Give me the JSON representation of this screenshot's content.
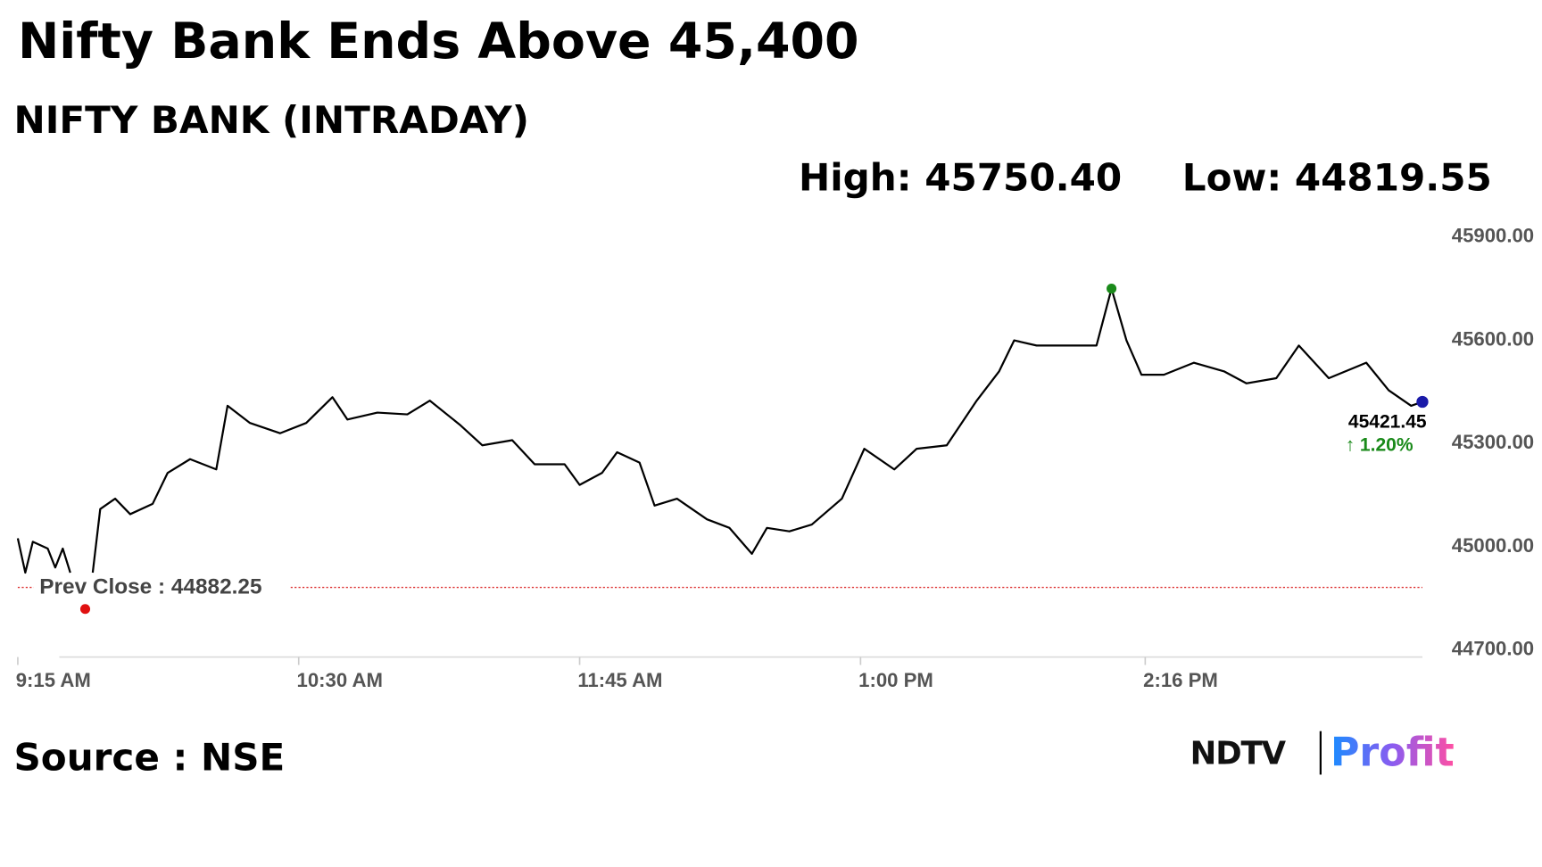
{
  "chart_data": {
    "type": "line",
    "title": "Nifty Bank Ends Above 45,400",
    "subtitle": "NIFTY BANK (INTRADAY)",
    "high": {
      "label": "High:",
      "value": 45750.4,
      "value_label": "45750.40"
    },
    "low": {
      "label": "Low:",
      "value": 44819.55,
      "value_label": "44819.55",
      "x": "9:33 AM"
    },
    "prev_close": {
      "label": "Prev Close :",
      "value": 44882.25
    },
    "last": {
      "value": 45421.45,
      "change": {
        "value": 1.2,
        "label": "1.20%"
      }
    },
    "source": "Source : NSE",
    "logo": [
      "NDTV",
      "Profit"
    ],
    "xlim": [
      "9:15 AM",
      "3:30 PM"
    ],
    "xticks": [
      "9:15 AM",
      "10:30 AM",
      "11:45 AM",
      "1:00 PM",
      "2:16 PM"
    ],
    "ylim": [
      44700,
      45900
    ],
    "yticks": [
      {
        "value": 44700,
        "label": "44700.00"
      },
      {
        "value": 45000,
        "label": "45000.00"
      },
      {
        "value": 45300,
        "label": "45300.00"
      },
      {
        "value": 45600,
        "label": "45600.00"
      },
      {
        "value": 45900,
        "label": "45900.00"
      }
    ],
    "x": [
      "9:15 AM",
      "9:17 AM",
      "9:19 AM",
      "9:23 AM",
      "9:25 AM",
      "9:27 AM",
      "9:29 AM",
      "9:32 AM",
      "9:35 AM",
      "9:37 AM",
      "9:41 AM",
      "9:45 AM",
      "9:51 AM",
      "9:55 AM",
      "10:01 AM",
      "10:08 AM",
      "10:11 AM",
      "10:17 AM",
      "10:25 AM",
      "10:32 AM",
      "10:39 AM",
      "10:43 AM",
      "10:51 AM",
      "10:59 AM",
      "11:05 AM",
      "11:13 AM",
      "11:19 AM",
      "11:27 AM",
      "11:33 AM",
      "11:41 AM",
      "11:45 AM",
      "11:51 AM",
      "11:55 AM",
      "12:01 PM",
      "12:05 PM",
      "12:11 PM",
      "12:19 PM",
      "12:25 PM",
      "12:31 PM",
      "12:35 PM",
      "12:41 PM",
      "12:47 PM",
      "12:55 PM",
      "1:01 PM",
      "1:09 PM",
      "1:15 PM",
      "1:23 PM",
      "1:31 PM",
      "1:37 PM",
      "1:41 PM",
      "1:47 PM",
      "1:55 PM",
      "2:03 PM",
      "2:07 PM",
      "2:11 PM",
      "2:15 PM",
      "2:21 PM",
      "2:29 PM",
      "2:37 PM",
      "2:43 PM",
      "2:51 PM",
      "2:57 PM",
      "3:05 PM",
      "3:15 PM",
      "3:21 PM",
      "3:27 PM",
      "3:30 PM"
    ],
    "series": [
      {
        "name": "NIFTY BANK",
        "color": "#000000",
        "values": [
          45025,
          44925,
          45015,
          44995,
          44940,
          44995,
          44925,
          null,
          44925,
          45110,
          45140,
          45095,
          45125,
          45215,
          45255,
          45225,
          45410,
          45360,
          45330,
          45360,
          45435,
          45370,
          45390,
          45385,
          45425,
          45355,
          45295,
          45310,
          45240,
          45240,
          45180,
          45215,
          45275,
          45245,
          45120,
          45140,
          45080,
          45055,
          44980,
          45055,
          45045,
          45065,
          45140,
          45285,
          45225,
          45285,
          45295,
          45425,
          45510,
          45600,
          45585,
          45585,
          45585,
          45750.4,
          45600,
          45500,
          45500,
          45535,
          45510,
          45475,
          45490,
          45585,
          45490,
          45535,
          45455,
          45410,
          45421.45
        ]
      }
    ]
  }
}
